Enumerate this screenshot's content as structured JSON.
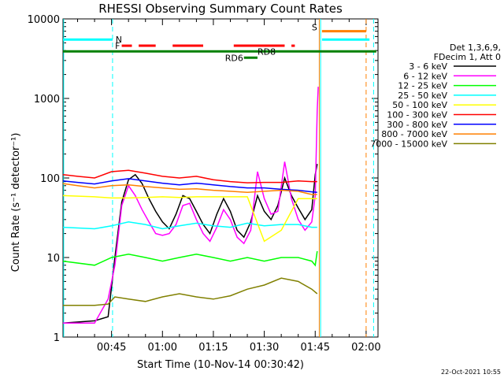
{
  "chart_data": {
    "type": "line",
    "title": "RHESSI Observing Summary Count Rates",
    "xlabel": "Start Time (10-Nov-14 00:30:42)",
    "ylabel": "Count Rate (s⁻¹ detector⁻¹)",
    "yscale": "log",
    "xlim_minutes": [
      30.7,
      123.5
    ],
    "ylim": [
      1,
      10000
    ],
    "x_ticks": [
      {
        "label": "00:45",
        "minute": 45
      },
      {
        "label": "01:00",
        "minute": 60
      },
      {
        "label": "01:15",
        "minute": 75
      },
      {
        "label": "01:30",
        "minute": 90
      },
      {
        "label": "01:45",
        "minute": 105
      },
      {
        "label": "02:00",
        "minute": 120
      }
    ],
    "y_ticks": [
      {
        "label": "1",
        "value": 1
      },
      {
        "label": "10",
        "value": 10
      },
      {
        "label": "100",
        "value": 100
      },
      {
        "label": "1000",
        "value": 1000
      },
      {
        "label": "10000",
        "value": 10000
      }
    ],
    "legend_header": [
      "Det 1,3,6,9,",
      "FDecim 1, Att 0"
    ],
    "legend_placement": "right",
    "series": [
      {
        "name": "3 - 6 keV",
        "color": "#000000",
        "x": [
          30.7,
          40,
          44,
          46,
          48,
          50,
          52,
          54,
          56,
          58,
          60,
          62,
          64,
          66,
          68,
          70,
          72,
          74,
          76,
          78,
          80,
          82,
          84,
          86,
          88,
          90,
          92,
          94,
          96,
          98,
          100,
          102,
          104,
          105,
          105.6
        ],
        "y": [
          1.5,
          1.6,
          1.8,
          10,
          50,
          95,
          110,
          85,
          55,
          38,
          28,
          23,
          35,
          60,
          55,
          38,
          26,
          20,
          35,
          55,
          38,
          22,
          18,
          28,
          60,
          38,
          30,
          45,
          100,
          60,
          42,
          30,
          40,
          110,
          150
        ]
      },
      {
        "name": "6 - 12 keV",
        "color": "#ff00ff",
        "x": [
          30.7,
          40,
          44,
          46,
          48,
          50,
          52,
          54,
          56,
          58,
          60,
          62,
          64,
          66,
          68,
          70,
          72,
          74,
          76,
          78,
          80,
          82,
          84,
          86,
          88,
          90,
          92,
          94,
          96,
          98,
          100,
          102,
          104,
          105,
          105.6,
          105.9
        ],
        "y": [
          1.5,
          1.5,
          3,
          8,
          45,
          80,
          60,
          40,
          28,
          20,
          19,
          20,
          26,
          45,
          48,
          30,
          20,
          16,
          24,
          40,
          30,
          18,
          15,
          22,
          120,
          55,
          35,
          38,
          160,
          55,
          30,
          22,
          28,
          60,
          700,
          1400
        ]
      },
      {
        "name": "12 - 25 keV",
        "color": "#00ff00",
        "x": [
          30.7,
          40,
          45,
          50,
          55,
          60,
          65,
          70,
          75,
          80,
          85,
          90,
          95,
          100,
          104,
          105,
          105.6
        ],
        "y": [
          9,
          8,
          10,
          11,
          10,
          9,
          10,
          11,
          10,
          9,
          10,
          9,
          10,
          10,
          9,
          8,
          12
        ]
      },
      {
        "name": "25 - 50 keV",
        "color": "#00ffff",
        "x": [
          30.7,
          40,
          45,
          50,
          55,
          60,
          65,
          70,
          75,
          80,
          85,
          90,
          95,
          100,
          104,
          105.6
        ],
        "y": [
          24,
          23,
          25,
          28,
          26,
          23,
          25,
          27,
          25,
          24,
          27,
          25,
          26,
          26,
          24,
          24
        ]
      },
      {
        "name": "50 - 100 keV",
        "color": "#ffff00",
        "x": [
          30.7,
          40,
          45,
          50,
          55,
          60,
          65,
          70,
          75,
          80,
          85,
          90,
          95,
          100,
          104,
          105.6
        ],
        "y": [
          60,
          58,
          56,
          56,
          57,
          58,
          57,
          58,
          58,
          58,
          58,
          16,
          22,
          55,
          55,
          55
        ]
      },
      {
        "name": "100 - 300 keV",
        "color": "#ff0000",
        "x": [
          30.7,
          35,
          40,
          45,
          50,
          55,
          60,
          65,
          70,
          75,
          80,
          85,
          90,
          95,
          100,
          104,
          105.6
        ],
        "y": [
          110,
          105,
          100,
          120,
          125,
          115,
          105,
          100,
          105,
          95,
          90,
          87,
          88,
          88,
          92,
          90,
          90
        ]
      },
      {
        "name": "300 - 800 keV",
        "color": "#0000ff",
        "x": [
          30.7,
          35,
          40,
          45,
          50,
          55,
          60,
          65,
          70,
          75,
          80,
          85,
          90,
          95,
          100,
          104,
          105.6
        ],
        "y": [
          92,
          88,
          84,
          92,
          98,
          92,
          86,
          82,
          86,
          82,
          78,
          75,
          75,
          72,
          70,
          67,
          66
        ]
      },
      {
        "name": "800 - 7000 keV",
        "color": "#ff8000",
        "x": [
          30.7,
          35,
          40,
          45,
          50,
          55,
          60,
          65,
          70,
          75,
          80,
          85,
          90,
          95,
          100,
          104,
          105.6
        ],
        "y": [
          85,
          80,
          75,
          80,
          82,
          78,
          75,
          72,
          73,
          70,
          68,
          66,
          68,
          70,
          68,
          62,
          62
        ]
      },
      {
        "name": "7000 - 15000 keV",
        "color": "#808000",
        "x": [
          30.7,
          40,
          44,
          46,
          50,
          55,
          60,
          65,
          70,
          75,
          80,
          85,
          90,
          95,
          100,
          104,
          105.6
        ],
        "y": [
          2.5,
          2.5,
          2.6,
          3.2,
          3,
          2.8,
          3.2,
          3.5,
          3.2,
          3,
          3.3,
          4,
          4.5,
          5.5,
          5,
          4,
          3.5
        ]
      }
    ],
    "flag_bars": [
      {
        "label": "N",
        "color": "#00ffff",
        "y": 5500,
        "segments": [
          [
            30.7,
            45.3
          ],
          [
            107,
            121
          ]
        ]
      },
      {
        "label": "S",
        "color": "#ff8000",
        "y": 7000,
        "segments": [
          [
            107,
            120
          ]
        ]
      },
      {
        "label": "F",
        "color": "#ff0000",
        "y": 4600,
        "segments": [
          [
            48,
            51
          ],
          [
            53,
            58
          ],
          [
            63,
            72
          ],
          [
            81,
            96
          ],
          [
            98,
            99
          ]
        ]
      },
      {
        "label": "",
        "color": "#008000",
        "y": 3900,
        "segments": [
          [
            30.7,
            123
          ]
        ]
      },
      {
        "label": "RD6",
        "color": "#008000",
        "y": 3250,
        "segments": [
          [
            84,
            88
          ]
        ]
      },
      {
        "label": "RD8",
        "color": "#008000",
        "y": 3900,
        "segments": []
      }
    ],
    "vertical_markers": [
      {
        "color": "#00ffff",
        "style": "dashed",
        "minute": 45.3
      },
      {
        "color": "#00ffff",
        "style": "solid",
        "minute": 106.6
      },
      {
        "color": "#ff8000",
        "style": "solid",
        "minute": 106.2
      },
      {
        "color": "#00ffff",
        "style": "dashed",
        "minute": 122.2
      },
      {
        "color": "#ff8000",
        "style": "dashed",
        "minute": 120.0
      },
      {
        "color": "#00ffff",
        "style": "solid",
        "minute": 30.9
      }
    ]
  },
  "footer": {
    "timestamp": "22-Oct-2021 10:55"
  }
}
